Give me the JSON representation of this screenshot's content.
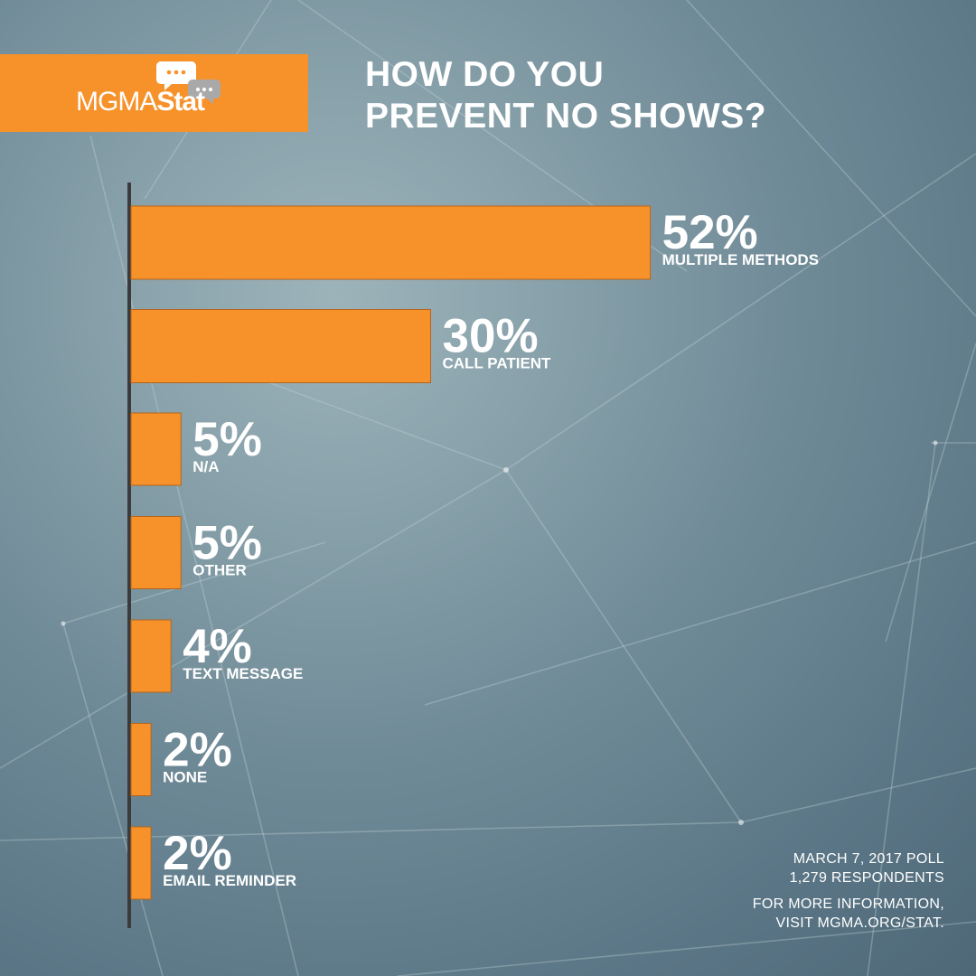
{
  "brand": {
    "logo_light": "MGMA",
    "logo_bold": "Stat",
    "accent_color": "#f7922a",
    "bubble_icons": [
      "chat-bubble-icon",
      "chat-bubble-icon"
    ]
  },
  "header": {
    "title_line1": "HOW DO YOU",
    "title_line2": "PREVENT NO SHOWS?"
  },
  "chart_data": {
    "type": "bar",
    "orientation": "horizontal",
    "title": "HOW DO YOU PREVENT NO SHOWS?",
    "categories": [
      "MULTIPLE METHODS",
      "CALL PATIENT",
      "N/A",
      "OTHER",
      "TEXT MESSAGE",
      "NONE",
      "EMAIL REMINDER"
    ],
    "values": [
      52,
      30,
      5,
      5,
      4,
      2,
      2
    ],
    "value_labels": [
      "52%",
      "30%",
      "5%",
      "5%",
      "4%",
      "2%",
      "2%"
    ],
    "unit": "%",
    "xlim": [
      0,
      100
    ],
    "bar_color": "#f7922a",
    "grid": false,
    "legend": "none"
  },
  "footer": {
    "poll_date": "MARCH 7, 2017 POLL",
    "respondents": "1,279 RESPONDENTS",
    "info_line1": "FOR MORE INFORMATION,",
    "info_line2": "VISIT MGMA.ORG/STAT."
  }
}
